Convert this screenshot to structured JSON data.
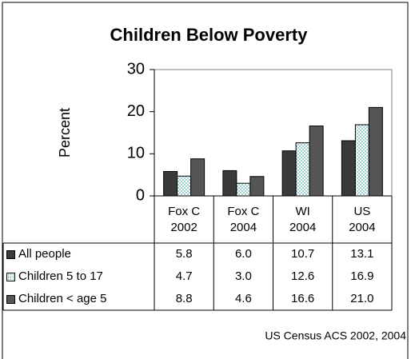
{
  "chart_data": {
    "type": "bar",
    "title": "Children Below Poverty",
    "y_label": "Percent",
    "categories": [
      "Fox C 2002",
      "Fox C 2004",
      "WI 2004",
      "US 2004"
    ],
    "series": [
      {
        "name": "All people",
        "color": "#3a3a3a",
        "values": [
          5.8,
          6,
          10.7,
          13.1
        ],
        "value_labels": [
          "5.8",
          "6.0",
          "10.7",
          "13.1"
        ]
      },
      {
        "name": "Children 5 to 17",
        "color": "#5fb0b0",
        "pattern": "dots",
        "values": [
          4.7,
          3,
          12.6,
          16.9
        ],
        "value_labels": [
          "4.7",
          "3.0",
          "12.6",
          "16.9"
        ]
      },
      {
        "name": "Children < age 5",
        "color": "#555555",
        "values": [
          8.8,
          4.6,
          16.6,
          21
        ],
        "value_labels": [
          "8.8",
          "4.6",
          "16.6",
          "21.0"
        ]
      }
    ],
    "ylim": [
      0,
      30
    ],
    "yticks": [
      0,
      10,
      20,
      30
    ],
    "grid": false,
    "source": "US Census ACS 2002, 2004"
  }
}
